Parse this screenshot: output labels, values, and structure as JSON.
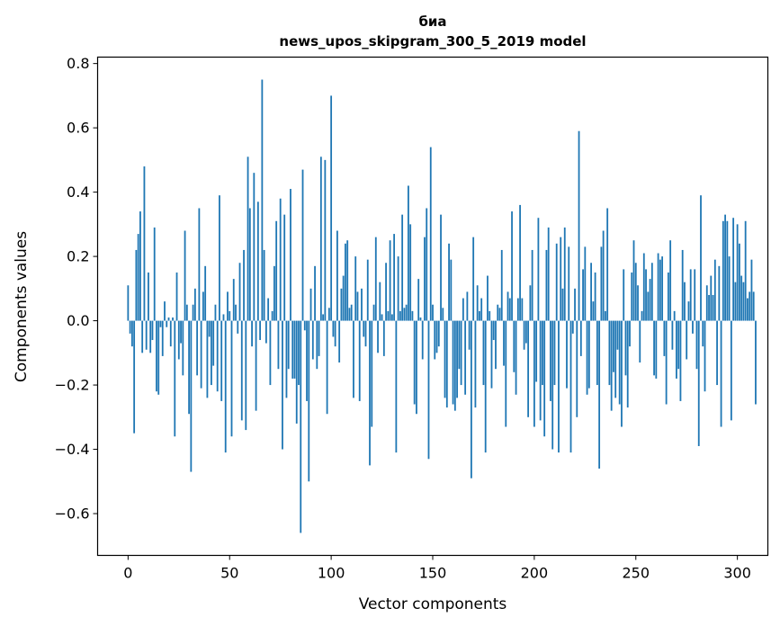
{
  "chart_data": {
    "type": "bar",
    "title_line1": "биа",
    "title_line2": "news_upos_skipgram_300_5_2019 model",
    "xlabel": "Vector components",
    "ylabel": "Components values",
    "xlim": [
      -15,
      315
    ],
    "ylim": [
      -0.73,
      0.82
    ],
    "xticks": [
      0,
      50,
      100,
      150,
      200,
      250,
      300
    ],
    "yticks": [
      -0.6,
      -0.4,
      -0.2,
      0.0,
      0.2,
      0.4,
      0.6,
      0.8
    ],
    "ytick_labels": [
      "−0.6",
      "−0.4",
      "−0.2",
      "0.0",
      "0.2",
      "0.4",
      "0.6",
      "0.8"
    ],
    "bar_color": "#1f77b4",
    "grid": false,
    "values": [
      0.11,
      -0.04,
      -0.08,
      -0.35,
      0.22,
      0.27,
      0.34,
      -0.1,
      0.48,
      -0.09,
      0.15,
      -0.1,
      -0.06,
      0.29,
      -0.22,
      -0.23,
      -0.02,
      -0.11,
      0.06,
      -0.02,
      0.01,
      -0.08,
      0.01,
      -0.36,
      0.15,
      -0.12,
      -0.07,
      -0.17,
      0.28,
      0.05,
      -0.29,
      -0.47,
      0.05,
      0.1,
      -0.17,
      0.35,
      -0.21,
      0.09,
      0.17,
      -0.24,
      -0.05,
      -0.2,
      -0.14,
      0.05,
      -0.22,
      0.39,
      -0.25,
      0.02,
      -0.41,
      0.09,
      0.03,
      -0.36,
      0.13,
      0.05,
      -0.04,
      0.18,
      -0.31,
      0.22,
      -0.34,
      0.51,
      0.35,
      -0.08,
      0.46,
      -0.28,
      0.37,
      -0.06,
      0.75,
      0.22,
      -0.07,
      0.07,
      -0.2,
      0.03,
      0.17,
      0.31,
      -0.15,
      0.38,
      -0.4,
      0.33,
      -0.24,
      -0.15,
      0.41,
      -0.18,
      -0.18,
      -0.32,
      -0.2,
      -0.66,
      0.47,
      -0.03,
      -0.25,
      -0.5,
      0.1,
      -0.12,
      0.17,
      -0.15,
      -0.11,
      0.51,
      0.02,
      0.5,
      -0.29,
      0.04,
      0.7,
      -0.05,
      -0.08,
      0.28,
      -0.13,
      0.1,
      0.14,
      0.24,
      0.25,
      0.04,
      0.05,
      -0.24,
      0.2,
      0.09,
      -0.25,
      0.1,
      -0.05,
      -0.08,
      0.19,
      -0.45,
      -0.33,
      0.05,
      0.26,
      -0.1,
      0.12,
      0.02,
      -0.11,
      0.18,
      0.03,
      0.25,
      0.02,
      0.27,
      -0.41,
      0.2,
      0.03,
      0.33,
      0.04,
      0.05,
      0.42,
      0.3,
      0.03,
      -0.26,
      -0.29,
      0.13,
      0.01,
      -0.12,
      0.26,
      0.35,
      -0.43,
      0.54,
      0.05,
      -0.12,
      -0.1,
      -0.08,
      0.33,
      0.04,
      -0.24,
      -0.27,
      0.24,
      0.19,
      -0.26,
      -0.28,
      -0.24,
      -0.15,
      -0.2,
      0.07,
      -0.23,
      0.09,
      -0.09,
      -0.49,
      0.26,
      -0.27,
      0.11,
      0.03,
      0.07,
      -0.2,
      -0.41,
      0.14,
      0.03,
      -0.21,
      -0.06,
      -0.15,
      0.05,
      0.04,
      0.22,
      -0.14,
      -0.33,
      0.09,
      0.07,
      0.34,
      -0.16,
      -0.23,
      0.07,
      0.36,
      0.07,
      -0.09,
      -0.07,
      -0.3,
      0.11,
      0.22,
      -0.33,
      -0.19,
      0.32,
      -0.31,
      -0.2,
      -0.36,
      0.22,
      0.29,
      -0.25,
      -0.4,
      -0.2,
      0.24,
      -0.41,
      0.26,
      0.1,
      0.29,
      -0.21,
      0.23,
      -0.41,
      -0.04,
      0.1,
      -0.3,
      0.59,
      -0.11,
      0.16,
      0.23,
      -0.23,
      -0.21,
      0.18,
      0.06,
      0.15,
      -0.2,
      -0.46,
      0.23,
      0.28,
      0.03,
      0.35,
      -0.2,
      -0.28,
      -0.16,
      -0.24,
      -0.09,
      -0.26,
      -0.33,
      0.16,
      -0.17,
      -0.27,
      -0.08,
      0.15,
      0.25,
      0.18,
      0.11,
      -0.13,
      0.03,
      0.21,
      0.16,
      0.09,
      0.13,
      0.18,
      -0.17,
      -0.18,
      0.21,
      0.19,
      0.2,
      -0.11,
      -0.26,
      0.15,
      0.25,
      -0.09,
      0.03,
      -0.18,
      -0.15,
      -0.25,
      0.22,
      0.12,
      -0.12,
      0.06,
      0.16,
      -0.04,
      0.16,
      -0.15,
      -0.39,
      0.39,
      -0.08,
      -0.22,
      0.11,
      0.08,
      0.14,
      0.08,
      0.19,
      -0.2,
      0.17,
      -0.33,
      0.31,
      0.33,
      0.31,
      0.2,
      -0.31,
      0.32,
      0.12,
      0.3,
      0.24,
      0.14,
      0.12,
      0.31,
      0.07,
      0.09,
      0.19,
      0.09,
      -0.26
    ]
  }
}
